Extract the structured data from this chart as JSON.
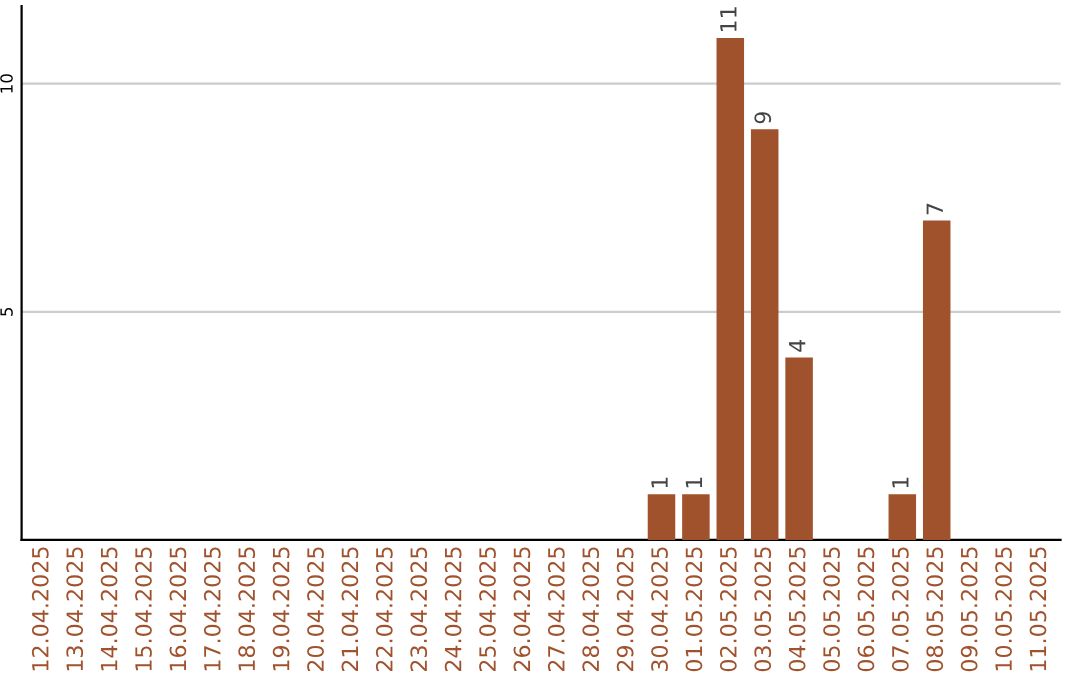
{
  "chart_data": {
    "type": "bar",
    "categories": [
      "12.04.2025",
      "13.04.2025",
      "14.04.2025",
      "15.04.2025",
      "16.04.2025",
      "17.04.2025",
      "18.04.2025",
      "19.04.2025",
      "20.04.2025",
      "21.04.2025",
      "22.04.2025",
      "23.04.2025",
      "24.04.2025",
      "25.04.2025",
      "26.04.2025",
      "27.04.2025",
      "28.04.2025",
      "29.04.2025",
      "30.04.2025",
      "01.05.2025",
      "02.05.2025",
      "03.05.2025",
      "04.05.2025",
      "05.05.2025",
      "06.05.2025",
      "07.05.2025",
      "08.05.2025",
      "09.05.2025",
      "10.05.2025",
      "11.05.2025"
    ],
    "values": [
      0,
      0,
      0,
      0,
      0,
      0,
      0,
      0,
      0,
      0,
      0,
      0,
      0,
      0,
      0,
      0,
      0,
      0,
      1,
      1,
      11,
      9,
      4,
      0,
      0,
      1,
      7,
      0,
      0,
      0
    ],
    "value_labels": [
      null,
      null,
      null,
      null,
      null,
      null,
      null,
      null,
      null,
      null,
      null,
      null,
      null,
      null,
      null,
      null,
      null,
      null,
      "1",
      "1",
      "11",
      "9",
      "4",
      null,
      null,
      "1",
      "7",
      null,
      null,
      null
    ],
    "color": "#a0522d",
    "ylim": [
      0,
      11.7
    ],
    "yticks": [
      5,
      10
    ],
    "grid": "y"
  }
}
